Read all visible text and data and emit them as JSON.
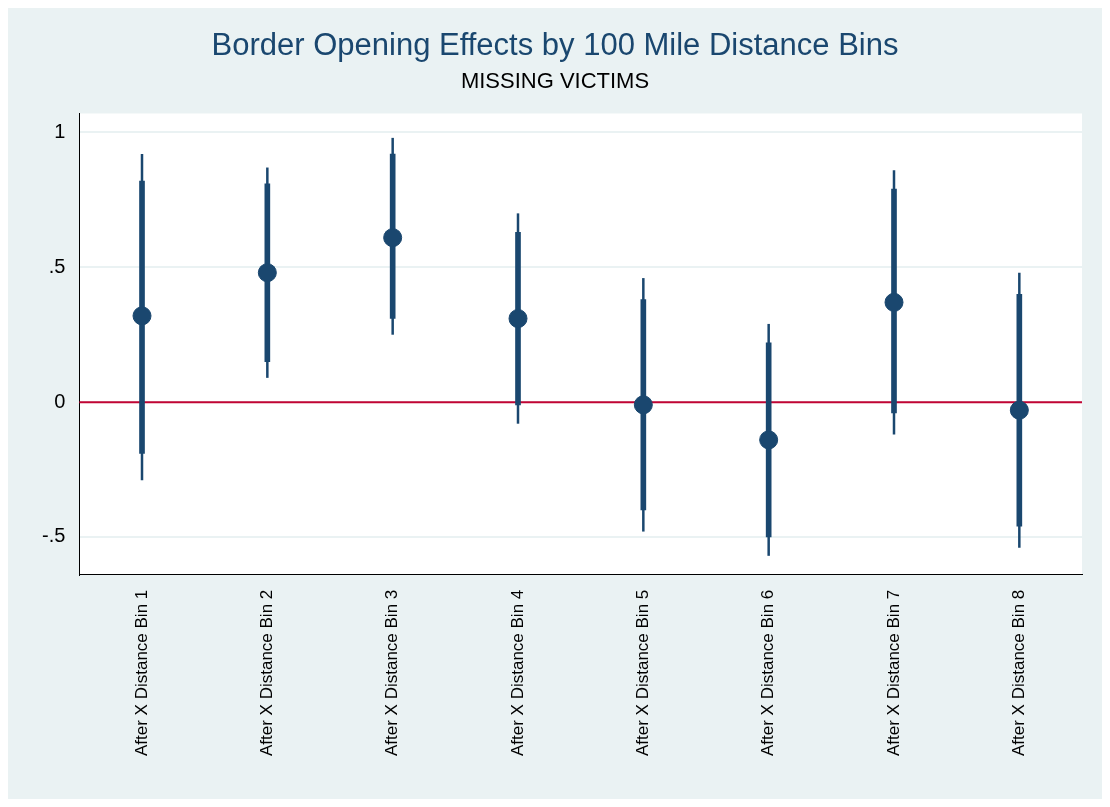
{
  "chart_data": {
    "type": "scatter",
    "title": "Border Opening Effects by 100 Mile Distance Bins",
    "subtitle": "MISSING VICTIMS",
    "categories": [
      "After X Distance Bin 1",
      "After X Distance Bin 2",
      "After X Distance Bin 3",
      "After X Distance Bin 4",
      "After X Distance Bin 5",
      "After X Distance Bin 6",
      "After X Distance Bin 7",
      "After X Distance Bin 8"
    ],
    "series": [
      {
        "color": "#1a476f",
        "values": [
          0.32,
          0.48,
          0.61,
          0.31,
          -0.01,
          -0.14,
          0.37,
          -0.03
        ],
        "errors": [
          [
            -0.29,
            0.92
          ],
          [
            0.09,
            0.87
          ],
          [
            0.25,
            0.98
          ],
          [
            -0.08,
            0.7
          ],
          [
            -0.48,
            0.46
          ],
          [
            -0.57,
            0.29
          ],
          [
            -0.12,
            0.86
          ],
          [
            -0.54,
            0.48
          ]
        ]
      },
      {
        "type": "bar",
        "color": "#1a476f",
        "base": [
          -0.19,
          0.15,
          0.31,
          -0.01,
          -0.4,
          -0.5,
          -0.04,
          -0.46
        ],
        "values": [
          1.01,
          0.66,
          0.61,
          0.64,
          0.78,
          0.72,
          0.83,
          0.86
        ]
      }
    ],
    "marker": "circle",
    "ylim": [
      -0.64,
      1.07
    ],
    "yticks": [
      {
        "value": -0.5,
        "label": "-.5"
      },
      {
        "value": 0,
        "label": "0"
      },
      {
        "value": 0.5,
        "label": ".5"
      },
      {
        "value": 1,
        "label": "1"
      }
    ],
    "grid": "y",
    "legend": false,
    "ref_lines": [
      {
        "axis": "y",
        "value": 0,
        "color": "#c10534"
      }
    ]
  }
}
